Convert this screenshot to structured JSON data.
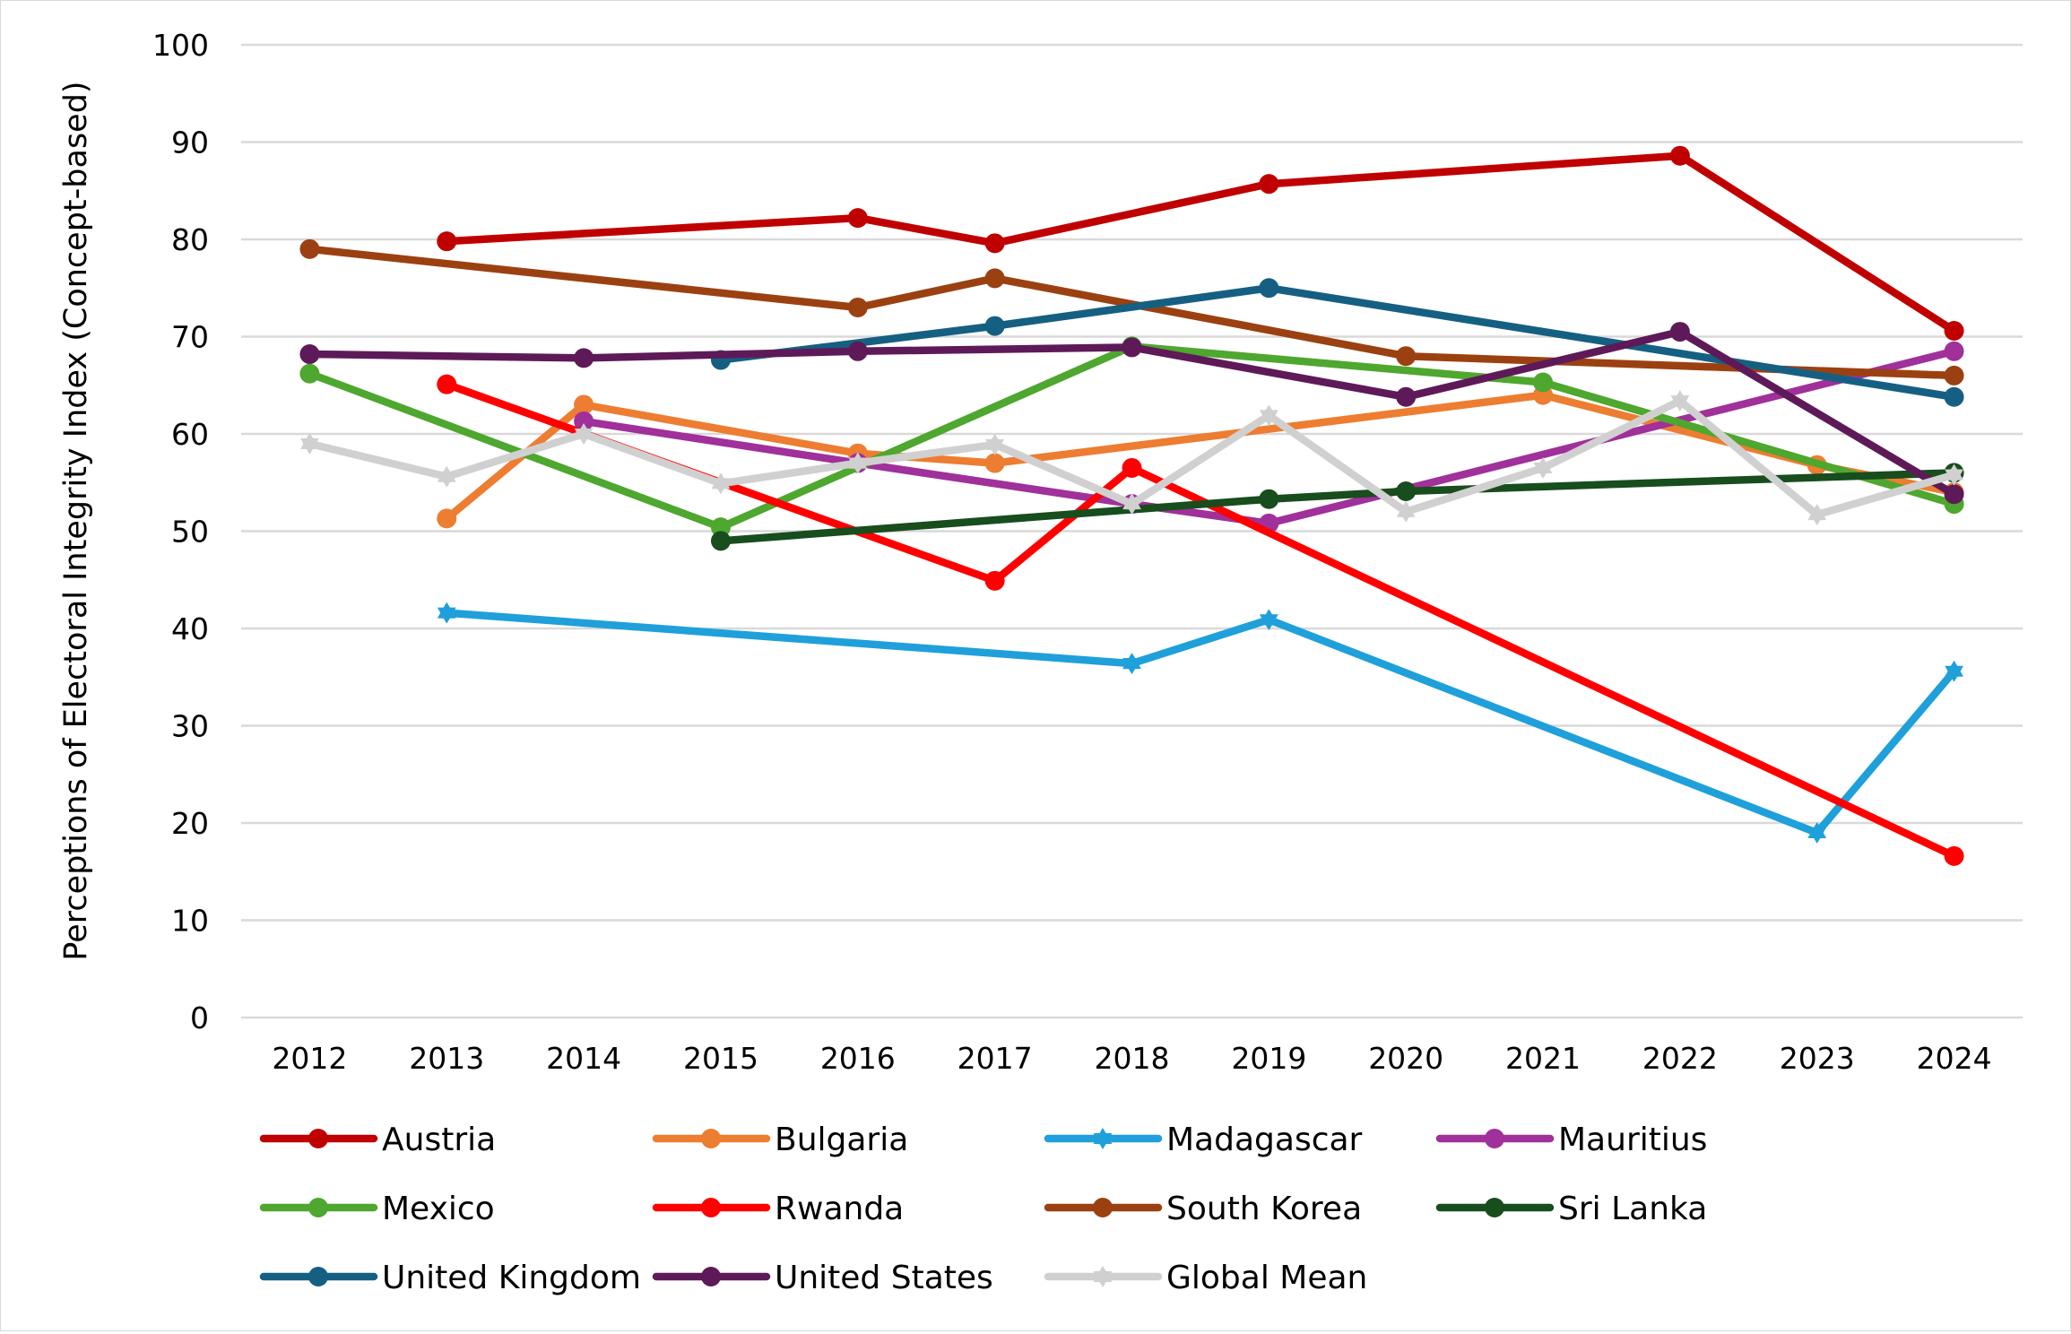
{
  "chart_data": {
    "type": "line",
    "title": "",
    "xlabel": "",
    "ylabel": "Perceptions of Electoral Integrity Index (Concept-based)",
    "x": [
      "2012",
      "2013",
      "2014",
      "2015",
      "2016",
      "2017",
      "2018",
      "2019",
      "2020",
      "2021",
      "2022",
      "2023",
      "2024"
    ],
    "ylim": [
      0,
      100
    ],
    "yticks": [
      0,
      10,
      20,
      30,
      40,
      50,
      60,
      70,
      80,
      90,
      100
    ],
    "grid": true,
    "legend_position": "bottom",
    "series": [
      {
        "name": "Austria",
        "color": "#c00000",
        "marker": "circle",
        "values": [
          null,
          79.8,
          null,
          null,
          82.2,
          79.6,
          null,
          85.7,
          null,
          null,
          88.6,
          null,
          70.6
        ]
      },
      {
        "name": "Bulgaria",
        "color": "#ed7d31",
        "marker": "circle",
        "values": [
          null,
          51.3,
          63.0,
          null,
          58.0,
          57.0,
          null,
          null,
          null,
          64.0,
          null,
          56.8,
          54.0
        ]
      },
      {
        "name": "Madagascar",
        "color": "#1fa0da",
        "marker": "star",
        "values": [
          null,
          41.6,
          null,
          null,
          null,
          null,
          36.4,
          40.9,
          null,
          null,
          null,
          19.0,
          35.6
        ]
      },
      {
        "name": "Mauritius",
        "color": "#a0309a",
        "marker": "circle",
        "values": [
          null,
          null,
          61.3,
          null,
          57.0,
          null,
          52.8,
          50.8,
          null,
          null,
          null,
          null,
          68.5
        ]
      },
      {
        "name": "Mexico",
        "color": "#4ea72e",
        "marker": "circle",
        "values": [
          66.2,
          null,
          null,
          50.4,
          null,
          null,
          69.0,
          null,
          null,
          65.3,
          null,
          null,
          52.8
        ]
      },
      {
        "name": "Rwanda",
        "color": "#ff0000",
        "marker": "circle",
        "values": [
          null,
          65.1,
          null,
          null,
          null,
          44.9,
          56.5,
          null,
          null,
          null,
          null,
          null,
          16.6
        ]
      },
      {
        "name": "South Korea",
        "color": "#9b4111",
        "marker": "circle",
        "values": [
          79.0,
          null,
          null,
          null,
          73.0,
          76.0,
          null,
          null,
          68.0,
          null,
          null,
          null,
          66.0
        ]
      },
      {
        "name": "Sri Lanka",
        "color": "#184d1d",
        "marker": "circle",
        "values": [
          null,
          null,
          null,
          49.0,
          null,
          null,
          null,
          53.3,
          54.1,
          null,
          null,
          null,
          56.0
        ]
      },
      {
        "name": "United Kingdom",
        "color": "#156082",
        "marker": "circle",
        "values": [
          null,
          null,
          null,
          67.6,
          null,
          71.1,
          null,
          75.0,
          null,
          null,
          null,
          null,
          63.8
        ]
      },
      {
        "name": "United States",
        "color": "#5e1a58",
        "marker": "circle",
        "values": [
          68.2,
          null,
          67.8,
          null,
          68.5,
          null,
          68.9,
          null,
          63.8,
          null,
          70.5,
          null,
          53.8
        ]
      },
      {
        "name": "Global Mean",
        "color": "#d0d0d0",
        "marker": "star",
        "values": [
          59.0,
          55.6,
          60.0,
          54.9,
          57.0,
          58.9,
          52.8,
          61.9,
          52.0,
          56.5,
          63.4,
          51.7,
          55.8
        ]
      }
    ]
  }
}
